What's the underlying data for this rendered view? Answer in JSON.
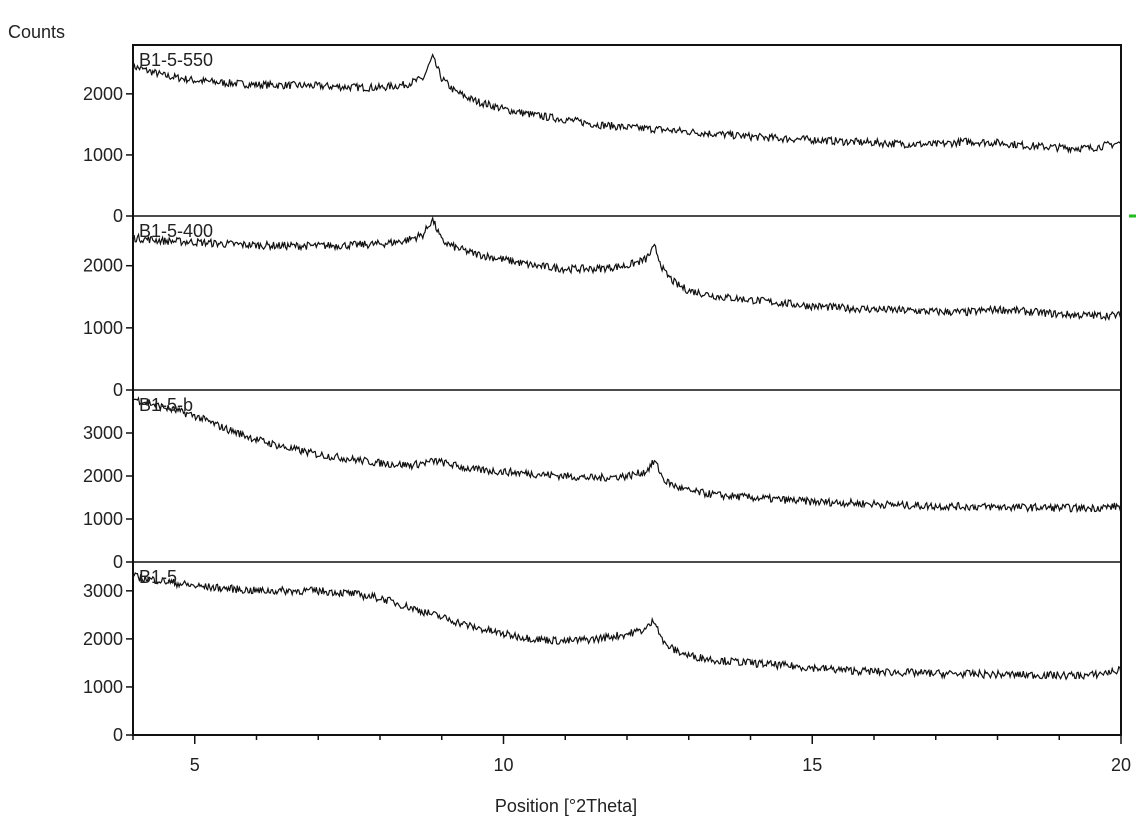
{
  "chart_data": {
    "type": "line",
    "ylabel": "Counts",
    "xlabel": "Position [°2Theta]",
    "xlim": [
      4,
      20
    ],
    "xticks_major": [
      5,
      10,
      15,
      20
    ],
    "grid": false,
    "marker_color": "#22bb22",
    "line_color": "#111111",
    "panels": [
      {
        "name": "B1-5-550",
        "ylim": [
          0,
          2800
        ],
        "yticks": [
          0,
          1000,
          2000
        ],
        "peaks": [
          [
            8.9,
            500
          ]
        ],
        "x": [
          4.0,
          4.5,
          5.0,
          5.5,
          6.0,
          6.5,
          7.0,
          7.5,
          8.0,
          8.4,
          8.7,
          8.85,
          9.0,
          9.2,
          9.5,
          10.0,
          10.5,
          11.0,
          11.5,
          12.0,
          12.5,
          13.0,
          13.5,
          14.0,
          14.5,
          15.0,
          15.5,
          16.0,
          16.5,
          17.0,
          17.5,
          18.0,
          18.5,
          19.0,
          19.5,
          20.0
        ],
        "y": [
          2450,
          2300,
          2220,
          2180,
          2150,
          2140,
          2130,
          2110,
          2100,
          2150,
          2250,
          2600,
          2250,
          2050,
          1900,
          1750,
          1650,
          1580,
          1500,
          1450,
          1420,
          1380,
          1340,
          1300,
          1270,
          1250,
          1220,
          1200,
          1180,
          1170,
          1220,
          1200,
          1150,
          1120,
          1110,
          1200
        ]
      },
      {
        "name": "B1-5-400",
        "ylim": [
          0,
          2800
        ],
        "yticks": [
          0,
          1000,
          2000
        ],
        "peaks": [
          [
            8.9,
            400
          ],
          [
            12.45,
            450
          ]
        ],
        "x": [
          4.0,
          4.5,
          5.0,
          5.5,
          6.0,
          6.5,
          7.0,
          7.5,
          8.0,
          8.4,
          8.7,
          8.85,
          9.0,
          9.2,
          9.5,
          10.0,
          10.5,
          11.0,
          11.5,
          12.0,
          12.3,
          12.45,
          12.6,
          12.8,
          13.0,
          13.5,
          14.0,
          14.5,
          15.0,
          15.5,
          16.0,
          16.5,
          17.0,
          17.5,
          18.0,
          18.5,
          19.0,
          19.5,
          20.0
        ],
        "y": [
          2450,
          2400,
          2380,
          2350,
          2330,
          2320,
          2320,
          2330,
          2350,
          2400,
          2500,
          2750,
          2400,
          2300,
          2200,
          2100,
          2000,
          1950,
          1950,
          2000,
          2100,
          2300,
          1900,
          1700,
          1600,
          1500,
          1450,
          1400,
          1350,
          1320,
          1300,
          1280,
          1260,
          1250,
          1300,
          1260,
          1220,
          1200,
          1200
        ]
      },
      {
        "name": "B1-5-b",
        "ylim": [
          0,
          4000
        ],
        "yticks": [
          0,
          1000,
          2000,
          3000
        ],
        "peaks": [
          [
            8.9,
            150
          ],
          [
            12.45,
            400
          ]
        ],
        "x": [
          4.0,
          4.5,
          5.0,
          5.5,
          6.0,
          6.5,
          7.0,
          7.5,
          8.0,
          8.5,
          8.9,
          9.5,
          10.0,
          10.5,
          11.0,
          11.5,
          12.0,
          12.3,
          12.45,
          12.6,
          12.8,
          13.0,
          13.5,
          14.0,
          14.5,
          15.0,
          15.5,
          16.0,
          16.5,
          17.0,
          17.5,
          18.0,
          18.5,
          19.0,
          19.5,
          20.0
        ],
        "y": [
          3800,
          3600,
          3400,
          3100,
          2850,
          2650,
          2500,
          2400,
          2300,
          2250,
          2350,
          2150,
          2100,
          2050,
          2000,
          1950,
          2000,
          2100,
          2350,
          1900,
          1750,
          1650,
          1550,
          1500,
          1450,
          1400,
          1380,
          1350,
          1320,
          1300,
          1290,
          1280,
          1270,
          1260,
          1250,
          1300
        ]
      },
      {
        "name": "B1-5",
        "ylim": [
          0,
          3600
        ],
        "yticks": [
          0,
          1000,
          2000,
          3000
        ],
        "peaks": [
          [
            12.45,
            350
          ]
        ],
        "x": [
          4.0,
          4.5,
          5.0,
          5.5,
          6.0,
          6.5,
          7.0,
          7.5,
          8.0,
          8.5,
          9.0,
          9.5,
          10.0,
          10.5,
          11.0,
          11.5,
          12.0,
          12.3,
          12.45,
          12.6,
          12.8,
          13.0,
          13.5,
          14.0,
          14.5,
          15.0,
          15.5,
          16.0,
          16.5,
          17.0,
          17.5,
          18.0,
          18.5,
          19.0,
          19.5,
          20.0
        ],
        "y": [
          3300,
          3200,
          3100,
          3050,
          3000,
          3000,
          3000,
          2950,
          2850,
          2650,
          2450,
          2250,
          2100,
          2000,
          1950,
          2000,
          2100,
          2200,
          2400,
          1900,
          1750,
          1650,
          1550,
          1500,
          1450,
          1400,
          1350,
          1320,
          1300,
          1280,
          1270,
          1260,
          1250,
          1240,
          1240,
          1350
        ]
      }
    ]
  }
}
